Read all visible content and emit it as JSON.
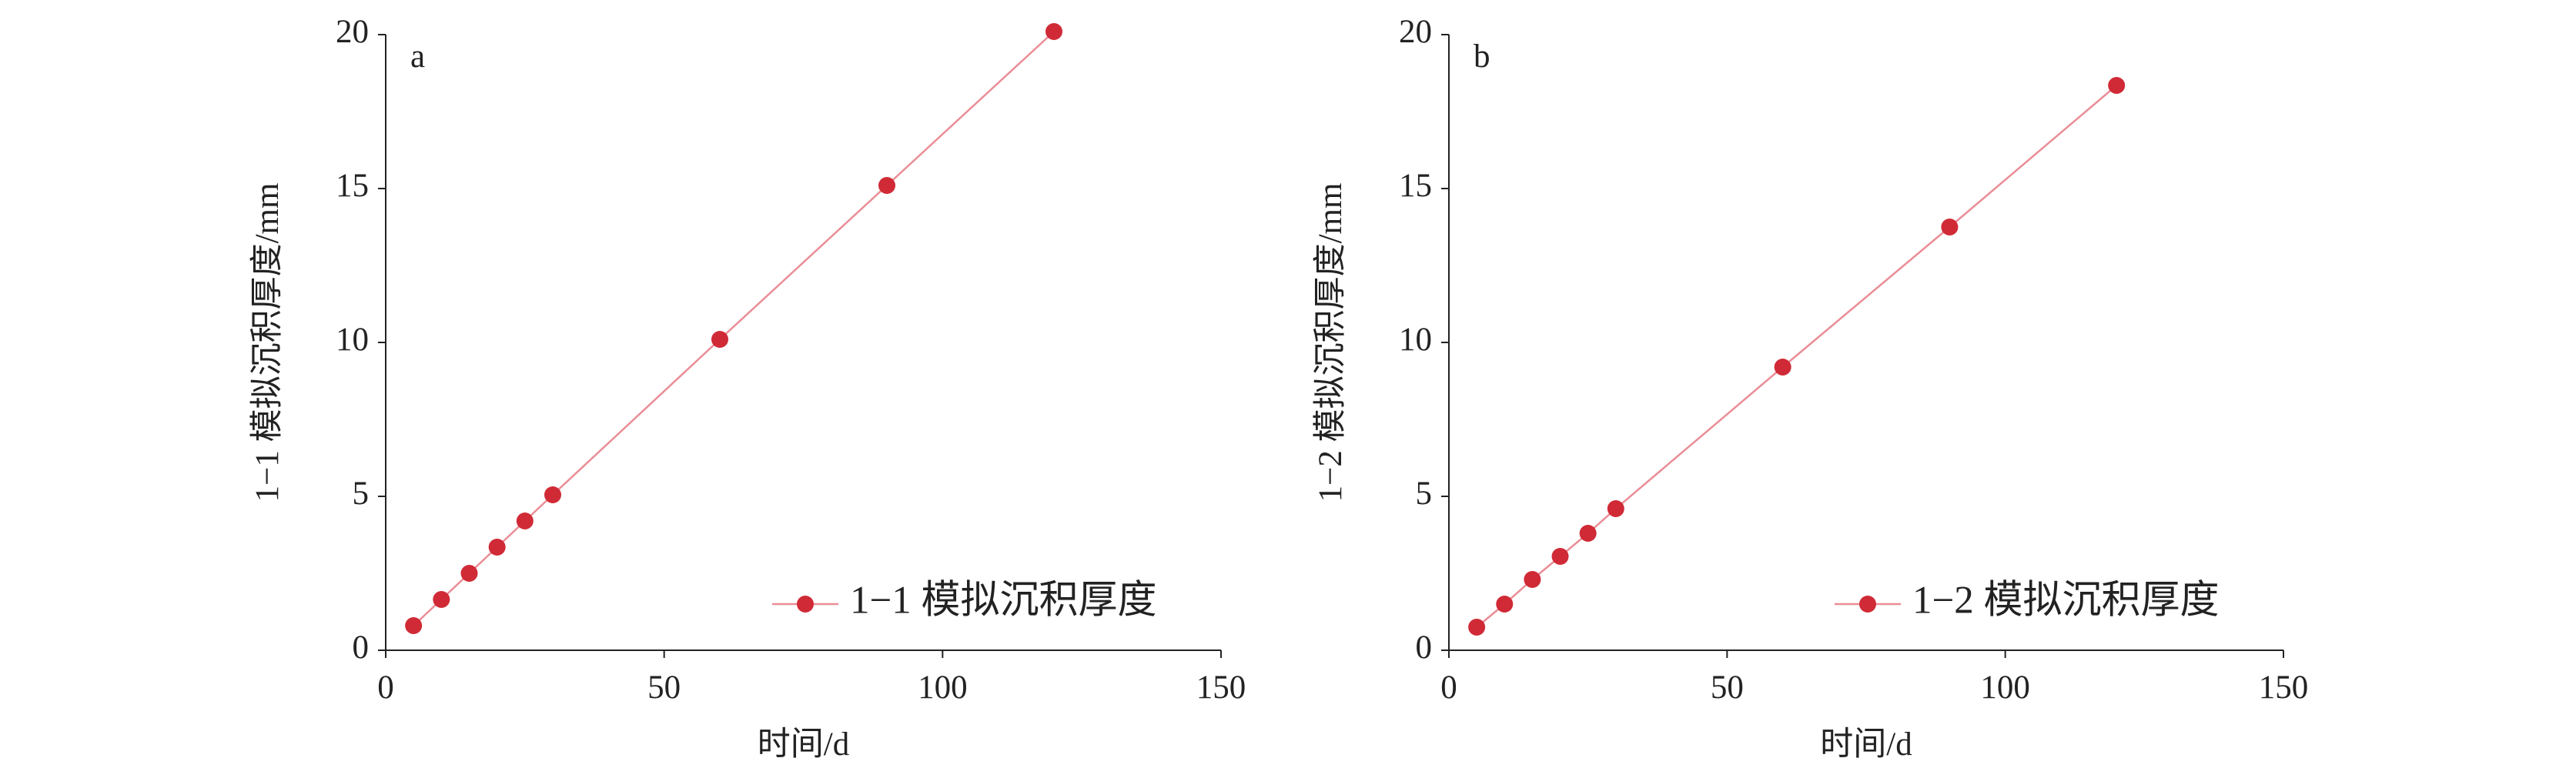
{
  "chart_data": [
    {
      "type": "line",
      "annotation": "a",
      "x_label": "时间/d",
      "y_label": "1−1 模拟沉积厚度/mm",
      "x": [
        5,
        10,
        15,
        20,
        25,
        30,
        60,
        90,
        120
      ],
      "series": [
        {
          "name": "1−1 模拟沉积厚度",
          "color": "#d02a36",
          "line_color": "#ea8d96",
          "values": [
            0.8,
            1.65,
            2.5,
            3.35,
            4.2,
            5.05,
            10.1,
            15.1,
            20.1
          ]
        }
      ],
      "xlim": [
        0,
        150
      ],
      "xticks": [
        0,
        50,
        100,
        150
      ],
      "ylim": [
        0,
        20
      ],
      "yticks": [
        0,
        5,
        10,
        15,
        20
      ],
      "legend": "lower right"
    },
    {
      "type": "line",
      "annotation": "b",
      "x_label": "时间/d",
      "y_label": "1−2 模拟沉积厚度/mm",
      "x": [
        5,
        10,
        15,
        20,
        25,
        30,
        60,
        90,
        120
      ],
      "series": [
        {
          "name": "1−2 模拟沉积厚度",
          "color": "#d02a36",
          "line_color": "#ea8d96",
          "values": [
            0.75,
            1.5,
            2.3,
            3.05,
            3.8,
            4.6,
            9.2,
            13.75,
            18.35
          ]
        }
      ],
      "xlim": [
        0,
        150
      ],
      "xticks": [
        0,
        50,
        100,
        150
      ],
      "ylim": [
        0,
        20
      ],
      "yticks": [
        0,
        5,
        10,
        15,
        20
      ],
      "legend": "lower right"
    }
  ]
}
